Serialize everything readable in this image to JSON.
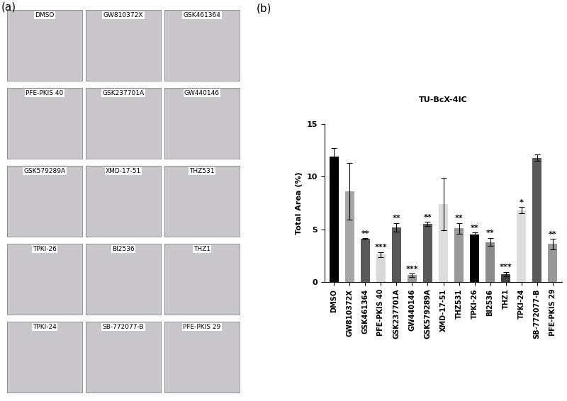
{
  "panel_a": {
    "label": "(a)",
    "images": [
      "DMSO",
      "GW810372X",
      "GSK461364",
      "PFE-PKIS 40",
      "GSK237701A",
      "GW440146",
      "GSK579289A",
      "XMD-17-51",
      "THZ531",
      "TPKI-26",
      "BI2536",
      "THZ1",
      "TPKI-24",
      "SB-772077-B",
      "PFE-PKIS 29"
    ]
  },
  "chart_data": {
    "type": "bar",
    "panel_label": "(b)",
    "title": "TU-BcX-4IC",
    "y_label": "Total Area (%)",
    "categories": [
      "DMSO",
      "GW810372X",
      "GSK461364",
      "PFE-PKIS 40",
      "GSK237701A",
      "GW440146",
      "GSK579289A",
      "XMD-17-51",
      "THZ531",
      "TPKI-26",
      "BI2536",
      "THZ1",
      "TPKI-24",
      "SB-772077-B",
      "PFE-PKIS 29"
    ],
    "values": [
      11.9,
      8.6,
      4.1,
      2.6,
      5.2,
      0.65,
      5.5,
      7.4,
      5.1,
      4.5,
      3.8,
      0.75,
      6.8,
      11.8,
      3.6
    ],
    "error": [
      0.8,
      2.7,
      0.05,
      0.25,
      0.4,
      0.15,
      0.2,
      2.5,
      0.5,
      0.2,
      0.4,
      0.2,
      0.3,
      0.3,
      0.5
    ],
    "significance": [
      null,
      null,
      "**",
      "***",
      "**",
      "***",
      "**",
      null,
      "**",
      "**",
      "**",
      "***",
      "*",
      null,
      "**"
    ],
    "colors": [
      "#000000",
      "#a6a6a6",
      "#595959",
      "#d9d9d9",
      "#595959",
      "#999999",
      "#595959",
      "#dddddd",
      "#999999",
      "#000000",
      "#8c8c8c",
      "#404040",
      "#dddddd",
      "#595959",
      "#999999"
    ],
    "ylim": [
      0,
      15
    ],
    "yticks": [
      0,
      5,
      10,
      15
    ],
    "grid": false
  }
}
